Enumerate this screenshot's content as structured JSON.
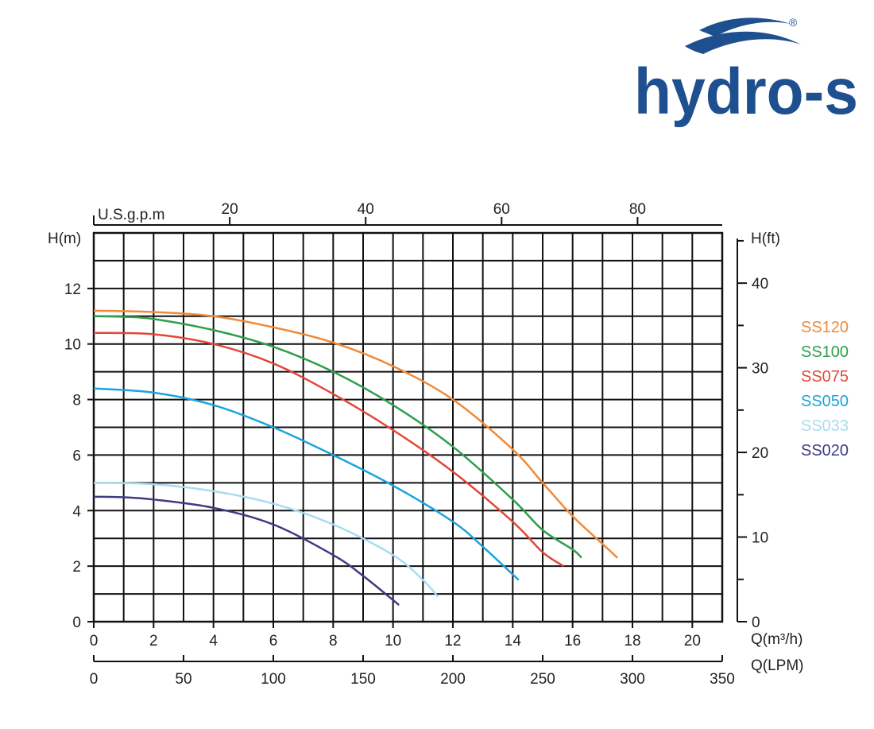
{
  "logo": {
    "text": "hydro-s",
    "registered_mark": "®",
    "color": "#1e4f8f"
  },
  "chart_data": {
    "type": "line",
    "title": "",
    "xlabel": "Q(m³/h)",
    "ylabel": "H(m)",
    "xlim": [
      0,
      21
    ],
    "ylim": [
      0,
      14
    ],
    "x_ticks": [
      0,
      2,
      4,
      6,
      8,
      10,
      12,
      14,
      16,
      18,
      20
    ],
    "y_ticks": [
      0,
      2,
      4,
      6,
      8,
      10,
      12
    ],
    "grid": true,
    "legend_position": "right",
    "secondary_axes": {
      "top": {
        "label": "U.S.g.p.m",
        "ticks": [
          20,
          40,
          60,
          80
        ],
        "factor_from_m3h": 4.4029
      },
      "bottom2": {
        "label": "Q(LPM)",
        "ticks": [
          0,
          50,
          100,
          150,
          200,
          250,
          300,
          350
        ],
        "factor_from_m3h": 16.667
      },
      "right": {
        "label": "H(ft)",
        "ticks": [
          0,
          10,
          20,
          30,
          40
        ],
        "factor_from_m": 3.2808
      }
    },
    "series": [
      {
        "name": "SS120",
        "color": "#ef8a3a",
        "x": [
          0,
          2,
          4,
          6,
          8,
          10,
          12,
          14,
          15,
          16,
          17,
          17.5
        ],
        "y": [
          11.2,
          11.15,
          11.0,
          10.6,
          10.05,
          9.2,
          8.0,
          6.2,
          5.0,
          3.8,
          2.8,
          2.3
        ]
      },
      {
        "name": "SS100",
        "color": "#2f9e4e",
        "x": [
          0,
          1,
          2,
          4,
          6,
          8,
          10,
          12,
          14,
          15,
          16,
          16.3
        ],
        "y": [
          11.0,
          10.98,
          10.9,
          10.5,
          9.9,
          9.0,
          7.8,
          6.3,
          4.4,
          3.3,
          2.6,
          2.3
        ]
      },
      {
        "name": "SS075",
        "color": "#e2473a",
        "x": [
          0,
          2,
          4,
          6,
          8,
          10,
          12,
          14,
          15,
          15.7
        ],
        "y": [
          10.4,
          10.35,
          10.0,
          9.3,
          8.2,
          6.9,
          5.4,
          3.6,
          2.5,
          2.0
        ]
      },
      {
        "name": "SS050",
        "color": "#1ba4dd",
        "x": [
          0,
          2,
          4,
          6,
          8,
          10,
          12,
          13,
          14.2
        ],
        "y": [
          8.4,
          8.25,
          7.8,
          7.0,
          6.0,
          4.9,
          3.6,
          2.7,
          1.5
        ]
      },
      {
        "name": "SS033",
        "color": "#a9dbf1",
        "x": [
          0,
          2,
          4,
          6,
          8,
          10,
          11,
          11.5
        ],
        "y": [
          5.0,
          4.95,
          4.7,
          4.25,
          3.5,
          2.4,
          1.5,
          0.9
        ]
      },
      {
        "name": "SS020",
        "color": "#3c3a85",
        "x": [
          0,
          1,
          2,
          4,
          6,
          8,
          9,
          10.2
        ],
        "y": [
          4.5,
          4.48,
          4.4,
          4.1,
          3.5,
          2.4,
          1.65,
          0.6
        ]
      }
    ]
  }
}
